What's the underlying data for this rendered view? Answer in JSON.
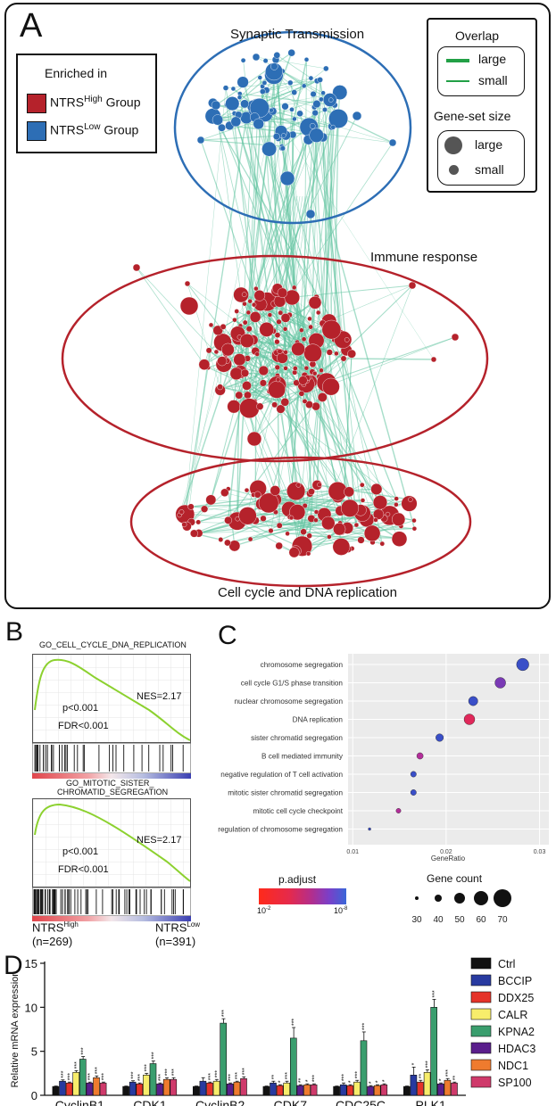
{
  "panelA": {
    "letter": "A",
    "legend_enriched": {
      "title": "Enriched in",
      "high": {
        "prefix": "NTRS",
        "sup": "High",
        "suffix": "Group",
        "color": "#b5222b"
      },
      "low": {
        "prefix": "NTRS",
        "sup": "Low",
        "suffix": "Group",
        "color": "#2d6eb5"
      }
    },
    "legend_overlap": {
      "title": "Overlap",
      "large": "large",
      "small": "small",
      "color": "#22a046"
    },
    "legend_size": {
      "title": "Gene-set size",
      "large": "large",
      "small": "small"
    },
    "clusters": {
      "synaptic": "Synaptic Transmission",
      "immune": "Immune response",
      "cellcycle": "Cell cycle and DNA replication"
    },
    "edge_color": "#5fc29e"
  },
  "panelB": {
    "letter": "B",
    "plot1": {
      "title": "GO_CELL_CYCLE_DNA_REPLICATION",
      "nes": "NES=2.17",
      "p": "p<0.001",
      "fdr": "FDR<0.001"
    },
    "plot2": {
      "title_line1": "GO_MITOTIC_SISTER_",
      "title_line2": "CHROMATID_SEGREGATION",
      "nes": "NES=2.17",
      "p": "p<0.001",
      "fdr": "FDR<0.001"
    },
    "left_label": {
      "prefix": "NTRS",
      "sup": "High",
      "n": "(n=269)"
    },
    "right_label": {
      "prefix": "NTRS",
      "sup": "Low",
      "n": "(n=391)"
    }
  },
  "panelC": {
    "letter": "C",
    "xlabel": "GeneRatio",
    "x_ticks": [
      "0.01",
      "0.02",
      "0.03"
    ],
    "xlim": [
      0.0095,
      0.031
    ],
    "terms": [
      {
        "label": "chromosome segregation",
        "ratio": 0.0282,
        "count": 55,
        "padj": "high"
      },
      {
        "label": "cell cycle G1/S phase transition",
        "ratio": 0.0258,
        "count": 50,
        "padj": "mid-high"
      },
      {
        "label": "nuclear chromosome segregation",
        "ratio": 0.0229,
        "count": 45,
        "padj": "high"
      },
      {
        "label": "DNA replication",
        "ratio": 0.0225,
        "count": 50,
        "padj": "low"
      },
      {
        "label": "sister chromatid segregation",
        "ratio": 0.0193,
        "count": 40,
        "padj": "high"
      },
      {
        "label": "B cell mediated immunity",
        "ratio": 0.0172,
        "count": 36,
        "padj": "mid"
      },
      {
        "label": "negative regulation of T cell activation",
        "ratio": 0.0165,
        "count": 34,
        "padj": "high"
      },
      {
        "label": "mitotic sister chromatid segregation",
        "ratio": 0.0165,
        "count": 34,
        "padj": "high"
      },
      {
        "label": "mitotic cell cycle checkpoint",
        "ratio": 0.0149,
        "count": 31,
        "padj": "mid"
      },
      {
        "label": "regulation of chromosome segregation",
        "ratio": 0.0118,
        "count": 24,
        "padj": "high"
      }
    ],
    "padj_legend": {
      "title": "p.adjust",
      "low_tick": "10",
      "low_exp": "-2",
      "high_tick": "10",
      "high_exp": "-8"
    },
    "count_legend": {
      "title": "Gene count",
      "values": [
        "30",
        "40",
        "50",
        "60",
        "70"
      ]
    }
  },
  "chart_data": {
    "type": "bar",
    "title": "",
    "ylabel": "Relative mRNA expression",
    "xlabel": "",
    "ylim": [
      0,
      15
    ],
    "y_ticks": [
      "0",
      "5",
      "10",
      "15"
    ],
    "categories": [
      "CyclinB1",
      "CDK1",
      "CyclinB2",
      "CDK7",
      "CDC25C",
      "PLK1"
    ],
    "series": [
      {
        "name": "Ctrl",
        "color": "#111111",
        "values": [
          1.0,
          1.0,
          1.0,
          1.0,
          1.0,
          1.0
        ],
        "err": [
          0.05,
          0.05,
          0.05,
          0.05,
          0.05,
          0.05
        ],
        "sig": [
          "",
          "",
          "",
          "",
          "",
          ""
        ]
      },
      {
        "name": "BCCIP",
        "color": "#283aa0",
        "values": [
          1.6,
          1.5,
          1.6,
          1.4,
          1.2,
          2.3
        ],
        "err": [
          0.15,
          0.15,
          0.4,
          0.2,
          0.2,
          0.9
        ],
        "sig": [
          "***",
          "***",
          "",
          "**",
          "***",
          "*"
        ]
      },
      {
        "name": "DDX25",
        "color": "#e5332a",
        "values": [
          1.4,
          1.3,
          1.4,
          1.1,
          1.1,
          1.5
        ],
        "err": [
          0.1,
          0.1,
          0.1,
          0.1,
          0.1,
          0.2
        ],
        "sig": [
          "***",
          "***",
          "***",
          "*",
          "*",
          "**"
        ]
      },
      {
        "name": "CALR",
        "color": "#f7ed6b",
        "values": [
          2.6,
          2.3,
          1.6,
          1.4,
          1.5,
          2.6
        ],
        "err": [
          0.2,
          0.2,
          0.2,
          0.2,
          0.2,
          0.3
        ],
        "sig": [
          "***",
          "***",
          "***",
          "***",
          "***",
          "***"
        ]
      },
      {
        "name": "KPNA2",
        "color": "#3a9e6e",
        "values": [
          4.1,
          3.6,
          8.2,
          6.5,
          6.2,
          10.0
        ],
        "err": [
          0.3,
          0.3,
          0.5,
          1.2,
          1.0,
          0.9
        ],
        "sig": [
          "***",
          "***",
          "***",
          "***",
          "***",
          "***"
        ]
      },
      {
        "name": "HDAC3",
        "color": "#5a1e8c",
        "values": [
          1.4,
          1.3,
          1.3,
          1.1,
          1.0,
          1.3
        ],
        "err": [
          0.1,
          0.1,
          0.1,
          0.1,
          0.1,
          0.1
        ],
        "sig": [
          "***",
          "***",
          "***",
          "**",
          "*",
          "*"
        ]
      },
      {
        "name": "NDC1",
        "color": "#ef7b2e",
        "values": [
          2.0,
          1.8,
          1.5,
          1.2,
          1.1,
          1.7
        ],
        "err": [
          0.2,
          0.2,
          0.1,
          0.1,
          0.1,
          0.2
        ],
        "sig": [
          "***",
          "***",
          "***",
          "*",
          "*",
          "***"
        ]
      },
      {
        "name": "SP100",
        "color": "#cf3a6b",
        "values": [
          1.4,
          1.8,
          1.9,
          1.2,
          1.2,
          1.4
        ],
        "err": [
          0.1,
          0.2,
          0.2,
          0.1,
          0.1,
          0.1
        ],
        "sig": [
          "***",
          "***",
          "***",
          "***",
          "*",
          "**"
        ]
      }
    ]
  },
  "panelD": {
    "letter": "D"
  }
}
